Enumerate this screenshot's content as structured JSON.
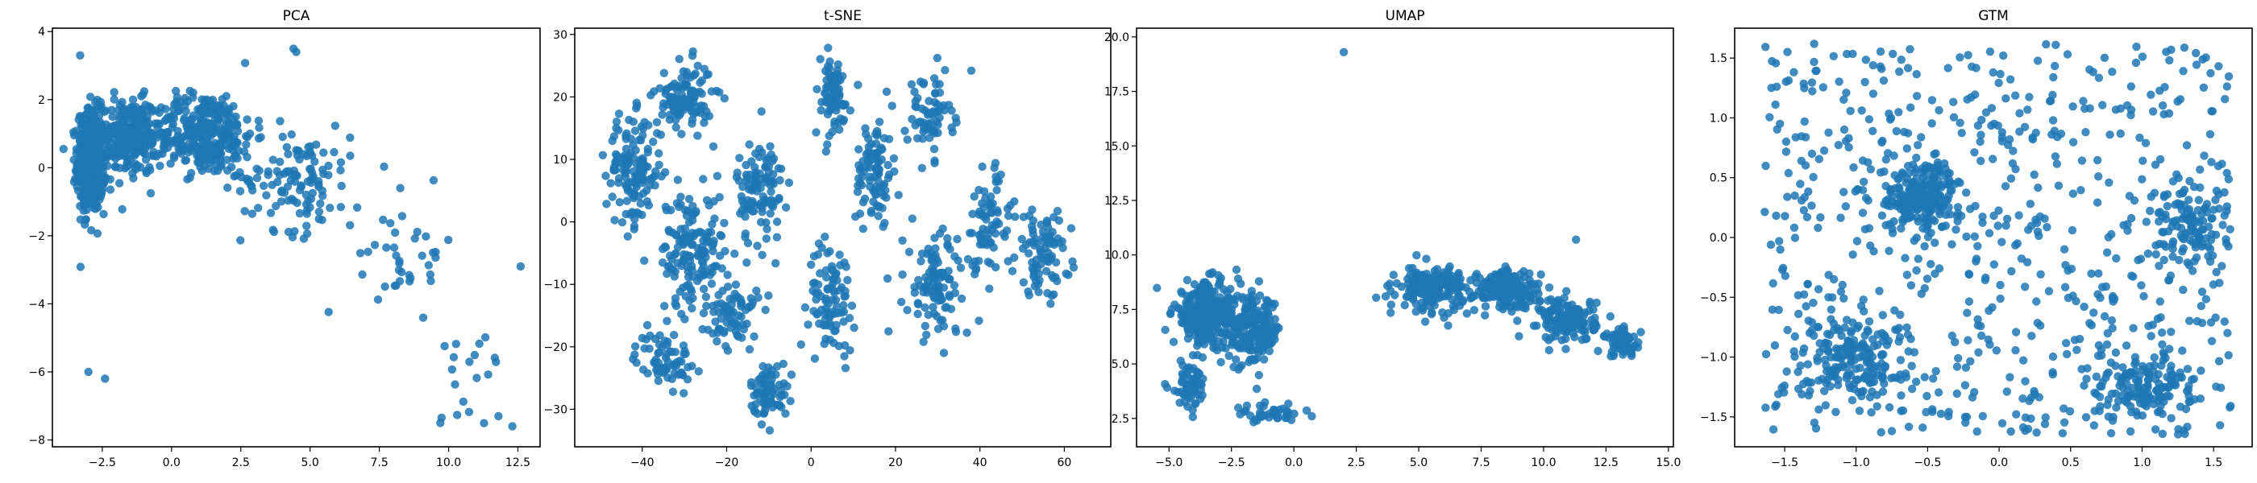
{
  "figure": {
    "marker_color": "#1f77b4",
    "marker_alpha": 0.85
  },
  "chart_data": [
    {
      "type": "scatter",
      "title": "PCA",
      "xlabel": "",
      "ylabel": "",
      "xlim": [
        -4.3,
        13.3
      ],
      "ylim": [
        -8.2,
        4.1
      ],
      "xticks": [
        -2.5,
        0.0,
        2.5,
        5.0,
        7.5,
        10.0,
        12.5
      ],
      "yticks": [
        -8,
        -6,
        -4,
        -2,
        0,
        2,
        4
      ],
      "grid": false,
      "approx_points": 1300,
      "clusters": [
        {
          "center": [
            -2.9,
            0.2
          ],
          "spread": [
            0.45,
            1.35
          ],
          "n": 560
        },
        {
          "center": [
            -1.5,
            0.9
          ],
          "spread": [
            1.0,
            1.0
          ],
          "n": 250
        },
        {
          "center": [
            1.2,
            1.0
          ],
          "spread": [
            1.6,
            1.1
          ],
          "n": 320
        },
        {
          "center": [
            4.5,
            -0.3
          ],
          "spread": [
            1.8,
            1.4
          ],
          "n": 120
        },
        {
          "center": [
            8.5,
            -2.5
          ],
          "spread": [
            1.6,
            1.5
          ],
          "n": 40
        },
        {
          "center": [
            10.8,
            -5.6
          ],
          "spread": [
            1.1,
            1.3
          ],
          "n": 18
        }
      ],
      "outliers": [
        [
          -3.0,
          -6.0
        ],
        [
          -2.4,
          -6.2
        ],
        [
          9.7,
          -7.5
        ],
        [
          11.8,
          -7.3
        ],
        [
          12.3,
          -7.6
        ],
        [
          12.6,
          -2.9
        ],
        [
          4.5,
          3.4
        ],
        [
          4.4,
          3.5
        ],
        [
          -3.3,
          3.3
        ]
      ]
    },
    {
      "type": "scatter",
      "title": "t-SNE",
      "xlabel": "",
      "ylabel": "",
      "xlim": [
        -56,
        71
      ],
      "ylim": [
        -36,
        31
      ],
      "xticks": [
        -40,
        -20,
        0,
        20,
        40,
        60
      ],
      "yticks": [
        -30,
        -20,
        -10,
        0,
        10,
        20,
        30
      ],
      "grid": false,
      "approx_points": 1300,
      "clusters": [
        {
          "center": [
            -42,
            8
          ],
          "spread": [
            6,
            8
          ],
          "n": 140
        },
        {
          "center": [
            -30,
            20
          ],
          "spread": [
            6,
            5
          ],
          "n": 110
        },
        {
          "center": [
            -28,
            -5
          ],
          "spread": [
            7,
            9
          ],
          "n": 160
        },
        {
          "center": [
            -35,
            -22
          ],
          "spread": [
            6,
            4
          ],
          "n": 70
        },
        {
          "center": [
            -12,
            5
          ],
          "spread": [
            5,
            8
          ],
          "n": 110
        },
        {
          "center": [
            -18,
            -15
          ],
          "spread": [
            5,
            5
          ],
          "n": 70
        },
        {
          "center": [
            -10,
            -27
          ],
          "spread": [
            4,
            4
          ],
          "n": 70
        },
        {
          "center": [
            5,
            20
          ],
          "spread": [
            4,
            6
          ],
          "n": 80
        },
        {
          "center": [
            5,
            -12
          ],
          "spread": [
            5,
            8
          ],
          "n": 90
        },
        {
          "center": [
            15,
            8
          ],
          "spread": [
            4,
            8
          ],
          "n": 90
        },
        {
          "center": [
            28,
            17
          ],
          "spread": [
            5,
            6
          ],
          "n": 70
        },
        {
          "center": [
            30,
            -10
          ],
          "spread": [
            7,
            8
          ],
          "n": 110
        },
        {
          "center": [
            42,
            0
          ],
          "spread": [
            5,
            8
          ],
          "n": 70
        },
        {
          "center": [
            55,
            -5
          ],
          "spread": [
            6,
            6
          ],
          "n": 90
        }
      ],
      "outliers": []
    },
    {
      "type": "scatter",
      "title": "UMAP",
      "xlabel": "",
      "ylabel": "",
      "xlim": [
        -6.3,
        15.2
      ],
      "ylim": [
        1.2,
        20.4
      ],
      "xticks": [
        -5.0,
        -2.5,
        0.0,
        2.5,
        5.0,
        7.5,
        10.0,
        12.5,
        15.0
      ],
      "yticks": [
        2.5,
        5.0,
        7.5,
        10.0,
        12.5,
        15.0,
        17.5,
        20.0
      ],
      "grid": false,
      "approx_points": 1250,
      "clusters": [
        {
          "center": [
            -3.5,
            7.3
          ],
          "spread": [
            1.2,
            1.3
          ],
          "n": 300
        },
        {
          "center": [
            -1.6,
            6.5
          ],
          "spread": [
            1.0,
            1.4
          ],
          "n": 180
        },
        {
          "center": [
            -4.2,
            4.0
          ],
          "spread": [
            0.7,
            1.0
          ],
          "n": 60
        },
        {
          "center": [
            -1.0,
            2.7
          ],
          "spread": [
            1.2,
            0.35
          ],
          "n": 40
        },
        {
          "center": [
            5.5,
            8.5
          ],
          "spread": [
            1.2,
            0.9
          ],
          "n": 180
        },
        {
          "center": [
            8.5,
            8.4
          ],
          "spread": [
            1.2,
            0.8
          ],
          "n": 200
        },
        {
          "center": [
            11.0,
            7.0
          ],
          "spread": [
            1.0,
            0.9
          ],
          "n": 150
        },
        {
          "center": [
            13.2,
            6.0
          ],
          "spread": [
            0.7,
            0.6
          ],
          "n": 60
        }
      ],
      "outliers": [
        [
          2.0,
          19.3
        ],
        [
          11.3,
          10.7
        ]
      ]
    },
    {
      "type": "scatter",
      "title": "GTM",
      "xlabel": "",
      "ylabel": "",
      "xlim": [
        -1.85,
        1.77
      ],
      "ylim": [
        -1.75,
        1.75
      ],
      "xticks": [
        -1.5,
        -1.0,
        -0.5,
        0.0,
        0.5,
        1.0,
        1.5
      ],
      "yticks": [
        -1.5,
        -1.0,
        -0.5,
        0.0,
        0.5,
        1.0,
        1.5
      ],
      "grid": false,
      "approx_points": 1300,
      "clusters": [
        {
          "center": [
            0.0,
            0.0
          ],
          "spread": [
            1.0,
            0.95
          ],
          "n": 650,
          "uniform": true,
          "range": [
            [
              -1.65,
              1.62
            ],
            [
              -1.65,
              1.62
            ]
          ]
        },
        {
          "center": [
            -0.55,
            0.35
          ],
          "spread": [
            0.25,
            0.25
          ],
          "n": 220
        },
        {
          "center": [
            -1.0,
            -1.0
          ],
          "spread": [
            0.3,
            0.3
          ],
          "n": 160
        },
        {
          "center": [
            1.0,
            -1.25
          ],
          "spread": [
            0.35,
            0.25
          ],
          "n": 140
        },
        {
          "center": [
            1.3,
            0.1
          ],
          "spread": [
            0.25,
            0.35
          ],
          "n": 120
        }
      ],
      "outliers": []
    }
  ]
}
